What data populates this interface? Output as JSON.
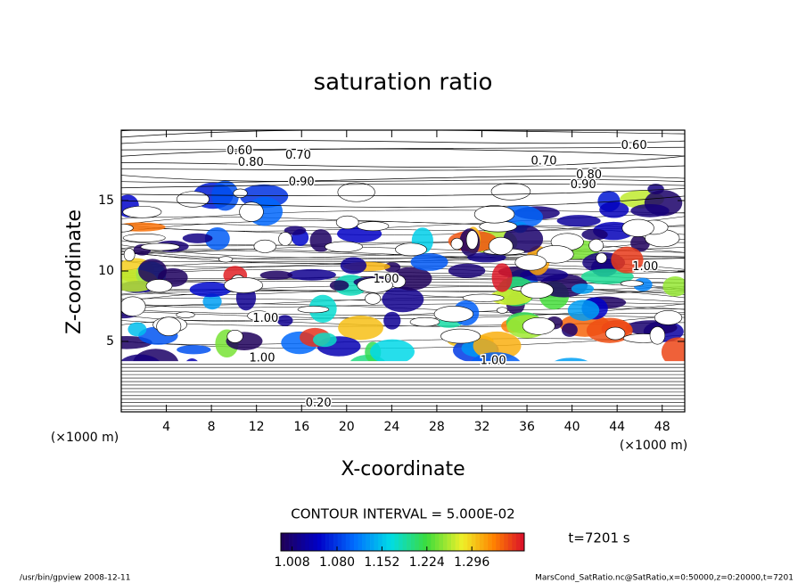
{
  "chart_data": {
    "type": "contour",
    "title": "saturation ratio",
    "x_label": "X-coordinate",
    "y_label": "Z-coordinate",
    "x_unit": "(×1000 m)",
    "y_unit": "(×1000 m)",
    "xlim": [
      0,
      50
    ],
    "ylim": [
      0,
      20
    ],
    "xticks": [
      4,
      8,
      12,
      16,
      20,
      24,
      28,
      32,
      36,
      40,
      44,
      48
    ],
    "yticks": [
      5,
      10,
      15
    ],
    "contour_interval": "CONTOUR INTERVAL = 5.000E-02",
    "colorbar": {
      "clim": [
        0.99,
        1.38
      ],
      "ticks": [
        1.008,
        {
          "value": 1.08,
          "label": "1.080"
        },
        1.152,
        1.224,
        1.296
      ]
    },
    "contour_labels": [
      {
        "x": 10.5,
        "y": 18.5,
        "label": "0.60"
      },
      {
        "x": 11.5,
        "y": 17.7,
        "label": "0.80"
      },
      {
        "x": 15.7,
        "y": 18.2,
        "label": "0.70"
      },
      {
        "x": 16.0,
        "y": 16.3,
        "label": "0.90"
      },
      {
        "x": 45.5,
        "y": 18.9,
        "label": "0.60"
      },
      {
        "x": 37.5,
        "y": 17.8,
        "label": "0.70"
      },
      {
        "x": 41.5,
        "y": 16.8,
        "label": "0.80"
      },
      {
        "x": 41.0,
        "y": 16.1,
        "label": "0.90"
      },
      {
        "x": 46.5,
        "y": 10.3,
        "label": "1.00"
      },
      {
        "x": 23.5,
        "y": 9.4,
        "label": "1.00"
      },
      {
        "x": 12.8,
        "y": 6.6,
        "label": "1.00"
      },
      {
        "x": 12.5,
        "y": 3.8,
        "label": "1.00"
      },
      {
        "x": 33.0,
        "y": 3.6,
        "label": "1.00"
      },
      {
        "x": 17.5,
        "y": 0.6,
        "label": "0.20"
      }
    ],
    "time_label": "t=7201 s",
    "footer_left": "/usr/bin/gpview   2008-12-11",
    "footer_right": "MarsCond_SatRatio.nc@SatRatio,x=0:50000,z=0:20000,t=7201"
  }
}
